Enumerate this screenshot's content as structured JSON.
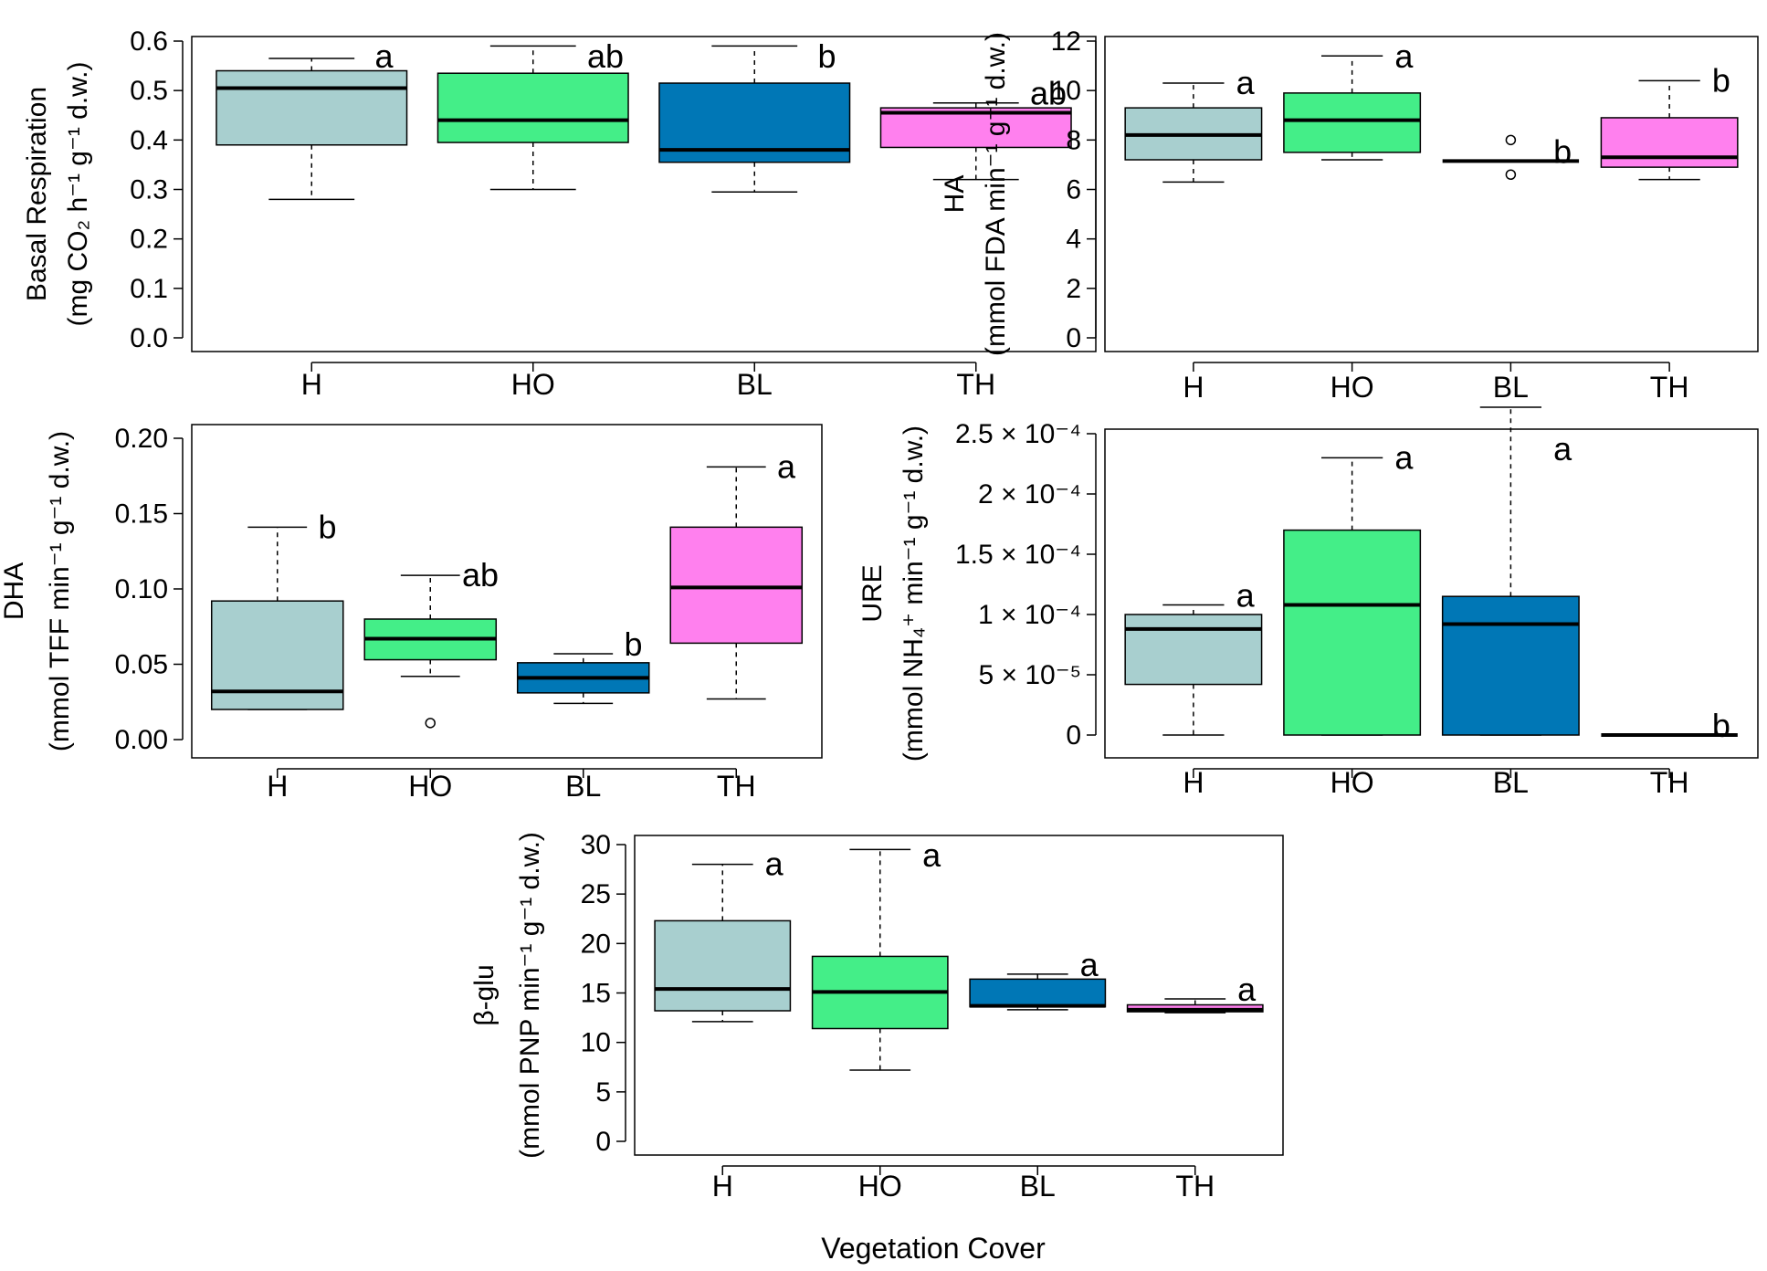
{
  "figure": {
    "xlabel": "Vegetation Cover",
    "colors": {
      "H": "#a8cfcf",
      "HO": "#44ee88",
      "BL": "#0077b6",
      "TH": "#ff80ee"
    }
  },
  "chart_data": [
    {
      "type": "box",
      "id": "br",
      "ylabel_line1": "Basal Respiration",
      "ylabel_line2": "(mg CO₂ h⁻¹ g⁻¹ d.w.)",
      "ylim": [
        0,
        0.6
      ],
      "yticks": [
        0.0,
        0.1,
        0.2,
        0.3,
        0.4,
        0.5,
        0.6
      ],
      "ytick_labels": [
        "0.0",
        "0.1",
        "0.2",
        "0.3",
        "0.4",
        "0.5",
        "0.6"
      ],
      "categories": [
        "H",
        "HO",
        "BL",
        "TH"
      ],
      "boxes": [
        {
          "min": 0.28,
          "q1": 0.39,
          "median": 0.505,
          "q3": 0.54,
          "max": 0.565,
          "outliers": [],
          "sig": "a"
        },
        {
          "min": 0.3,
          "q1": 0.395,
          "median": 0.44,
          "q3": 0.535,
          "max": 0.59,
          "outliers": [],
          "sig": "ab"
        },
        {
          "min": 0.295,
          "q1": 0.355,
          "median": 0.38,
          "q3": 0.515,
          "max": 0.59,
          "outliers": [],
          "sig": "b"
        },
        {
          "min": 0.32,
          "q1": 0.385,
          "median": 0.455,
          "q3": 0.465,
          "max": 0.475,
          "outliers": [],
          "sig": "ab"
        }
      ]
    },
    {
      "type": "box",
      "id": "ha",
      "ylabel_line1": "HA",
      "ylabel_line2": "(mmol FDA min⁻¹ g⁻¹ d.w.)",
      "ylim": [
        0,
        12
      ],
      "yticks": [
        0,
        2,
        4,
        6,
        8,
        10,
        12
      ],
      "ytick_labels": [
        "0",
        "2",
        "4",
        "6",
        "8",
        "10",
        "12"
      ],
      "categories": [
        "H",
        "HO",
        "BL",
        "TH"
      ],
      "boxes": [
        {
          "min": 6.3,
          "q1": 7.2,
          "median": 8.2,
          "q3": 9.3,
          "max": 10.3,
          "outliers": [],
          "sig": "a"
        },
        {
          "min": 7.2,
          "q1": 7.5,
          "median": 8.8,
          "q3": 9.9,
          "max": 11.4,
          "outliers": [],
          "sig": "a"
        },
        {
          "min": 7.15,
          "q1": 7.15,
          "median": 7.15,
          "q3": 7.15,
          "max": 7.15,
          "outliers": [
            8.0,
            6.6
          ],
          "sig": "b"
        },
        {
          "min": 6.4,
          "q1": 6.9,
          "median": 7.3,
          "q3": 8.9,
          "max": 10.4,
          "outliers": [],
          "sig": "b"
        }
      ]
    },
    {
      "type": "box",
      "id": "dha",
      "ylabel_line1": "DHA",
      "ylabel_line2": "(mmol TFF min⁻¹ g⁻¹ d.w.)",
      "ylim": [
        0,
        0.2
      ],
      "yticks": [
        0.0,
        0.05,
        0.1,
        0.15,
        0.2
      ],
      "ytick_labels": [
        "0.00",
        "0.05",
        "0.10",
        "0.15",
        "0.20"
      ],
      "categories": [
        "H",
        "HO",
        "BL",
        "TH"
      ],
      "boxes": [
        {
          "min": 0.02,
          "q1": 0.02,
          "median": 0.032,
          "q3": 0.092,
          "max": 0.141,
          "outliers": [],
          "sig": "b"
        },
        {
          "min": 0.042,
          "q1": 0.053,
          "median": 0.067,
          "q3": 0.08,
          "max": 0.109,
          "outliers": [
            0.011
          ],
          "sig": "ab"
        },
        {
          "min": 0.024,
          "q1": 0.031,
          "median": 0.041,
          "q3": 0.051,
          "max": 0.057,
          "outliers": [],
          "sig": "b"
        },
        {
          "min": 0.027,
          "q1": 0.064,
          "median": 0.101,
          "q3": 0.141,
          "max": 0.181,
          "outliers": [],
          "sig": "a"
        }
      ]
    },
    {
      "type": "box",
      "id": "ure",
      "ylabel_line1": "URE",
      "ylabel_line2": "(mmol NH₄⁺ min⁻¹ g⁻¹ d.w.)",
      "ylim": [
        0,
        0.00025
      ],
      "yticks": [
        0,
        5e-05,
        0.0001,
        0.00015,
        0.0002,
        0.00025
      ],
      "ytick_labels": [
        "0",
        "5 × 10⁻⁵",
        "1 × 10⁻⁴",
        "1.5 × 10⁻⁴",
        "2 × 10⁻⁴",
        "2.5 × 10⁻⁴"
      ],
      "categories": [
        "H",
        "HO",
        "BL",
        "TH"
      ],
      "boxes": [
        {
          "min": 0.0,
          "q1": 4.2e-05,
          "median": 8.8e-05,
          "q3": 0.0001,
          "max": 0.000108,
          "outliers": [],
          "sig": "a"
        },
        {
          "min": 0.0,
          "q1": 0.0,
          "median": 0.000108,
          "q3": 0.00017,
          "max": 0.00023,
          "outliers": [],
          "sig": "a"
        },
        {
          "min": 0.0,
          "q1": 0.0,
          "median": 9.2e-05,
          "q3": 0.000115,
          "max": 0.000272,
          "outliers": [],
          "sig": "a"
        },
        {
          "min": 0.0,
          "q1": 0.0,
          "median": 0.0,
          "q3": 0.0,
          "max": 0.0,
          "outliers": [],
          "sig": "b"
        }
      ]
    },
    {
      "type": "box",
      "id": "bglu",
      "ylabel_line1": "β-glu",
      "ylabel_line2": "(mmol PNP min⁻¹ g⁻¹ d.w.)",
      "ylim": [
        0,
        30
      ],
      "yticks": [
        0,
        5,
        10,
        15,
        20,
        25,
        30
      ],
      "ytick_labels": [
        "0",
        "5",
        "10",
        "15",
        "20",
        "25",
        "30"
      ],
      "categories": [
        "H",
        "HO",
        "BL",
        "TH"
      ],
      "boxes": [
        {
          "min": 12.1,
          "q1": 13.2,
          "median": 15.4,
          "q3": 22.3,
          "max": 28.0,
          "outliers": [],
          "sig": "a"
        },
        {
          "min": 7.2,
          "q1": 11.4,
          "median": 15.1,
          "q3": 18.7,
          "max": 29.5,
          "outliers": [],
          "sig": "a"
        },
        {
          "min": 13.3,
          "q1": 13.6,
          "median": 13.7,
          "q3": 16.4,
          "max": 16.9,
          "outliers": [],
          "sig": "a"
        },
        {
          "min": 13.0,
          "q1": 13.1,
          "median": 13.3,
          "q3": 13.8,
          "max": 14.4,
          "outliers": [],
          "sig": "a"
        }
      ]
    }
  ]
}
